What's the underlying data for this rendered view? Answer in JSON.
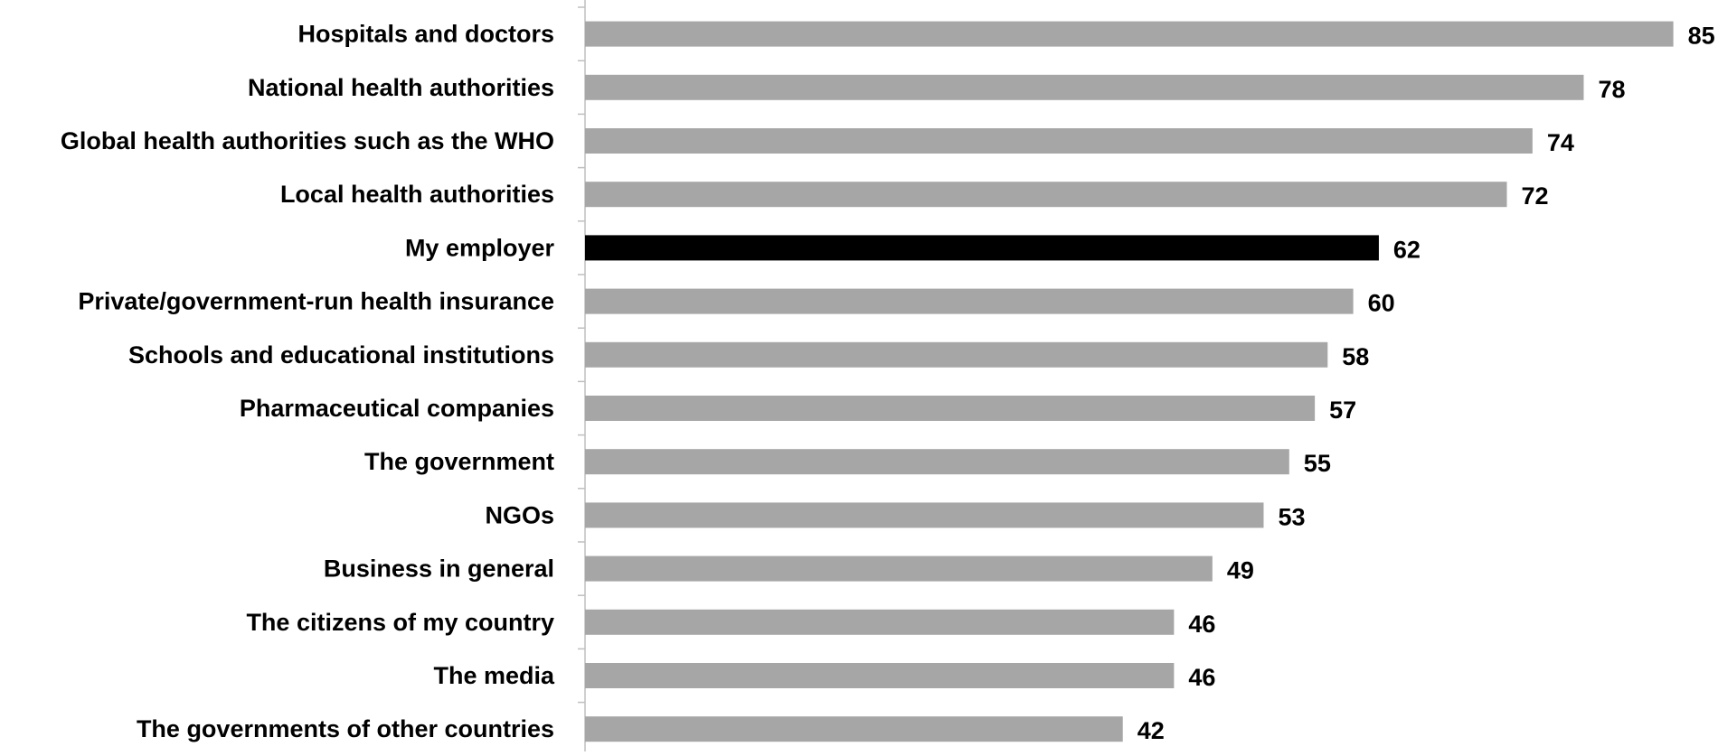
{
  "chart_data": {
    "type": "bar",
    "orientation": "horizontal",
    "categories": [
      "Hospitals and doctors",
      "National health authorities",
      "Global health authorities such as the WHO",
      "Local health authorities",
      "My employer",
      "Private/government-run health insurance",
      "Schools and educational institutions",
      "Pharmaceutical companies",
      "The government",
      "NGOs",
      "Business in general",
      "The citizens of my country",
      "The media",
      "The governments of other countries"
    ],
    "values": [
      85,
      78,
      74,
      72,
      62,
      60,
      58,
      57,
      55,
      53,
      49,
      46,
      46,
      42
    ],
    "highlight_category": "My employer",
    "colors": {
      "bar": "#a6a6a6",
      "highlight": "#000000",
      "axis": "#bfbfbf",
      "text": "#000000"
    },
    "xlim": [
      0,
      85
    ],
    "grid": false,
    "legend": "none",
    "title": "",
    "xlabel": "",
    "ylabel": ""
  }
}
